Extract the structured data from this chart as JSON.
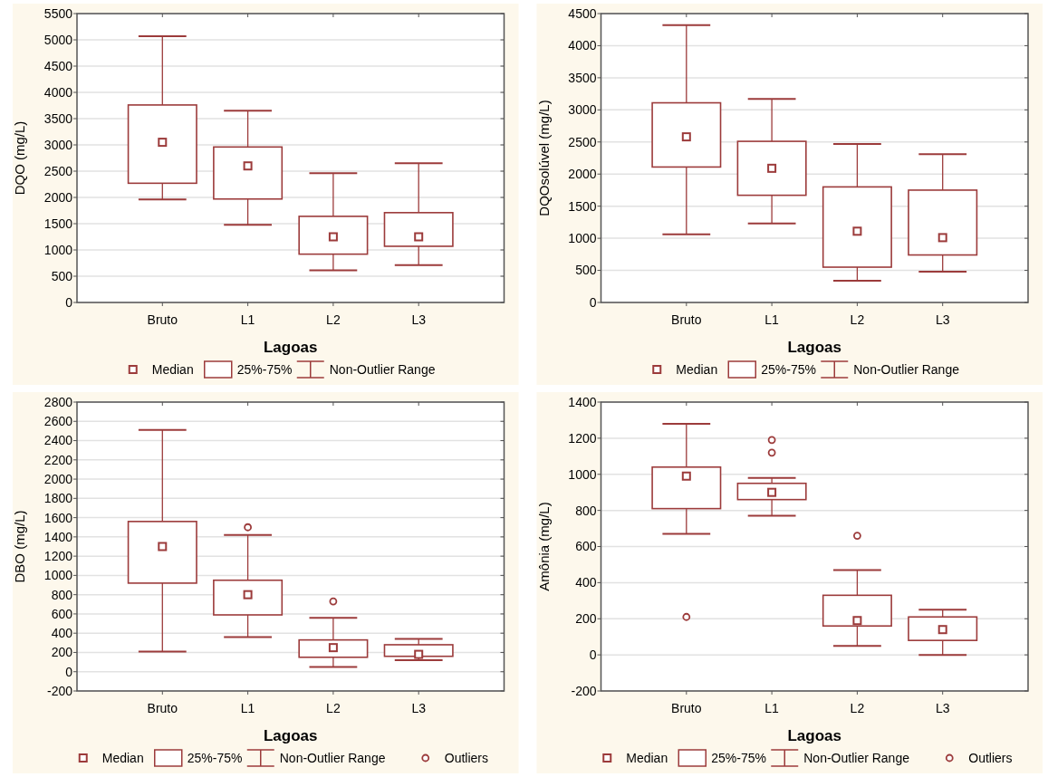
{
  "chart_data": [
    {
      "type": "box",
      "xlabel": "Lagoas",
      "ylabel": "DQO (mg/L)",
      "categories": [
        "Bruto",
        "L1",
        "L2",
        "L3"
      ],
      "color": "#9c3b3b",
      "marker": "square",
      "grid": "y",
      "ylim": [
        0,
        5500
      ],
      "yticks": [
        0,
        500,
        1000,
        1500,
        2000,
        2500,
        3000,
        3500,
        4000,
        4500,
        5000,
        5500
      ],
      "boxes": [
        {
          "low": 1960,
          "q1": 2270,
          "median": 3050,
          "q3": 3760,
          "high": 5070
        },
        {
          "low": 1480,
          "q1": 1970,
          "median": 2600,
          "q3": 2960,
          "high": 3650
        },
        {
          "low": 610,
          "q1": 920,
          "median": 1250,
          "q3": 1640,
          "high": 2460
        },
        {
          "low": 710,
          "q1": 1070,
          "median": 1250,
          "q3": 1710,
          "high": 2650
        }
      ],
      "annotations": [
        "Median",
        "25%-75%",
        "Non-Outlier Range"
      ]
    },
    {
      "type": "box",
      "xlabel": "Lagoas",
      "ylabel": "DQOsolúvel (mg/L)",
      "categories": [
        "Bruto",
        "L1",
        "L2",
        "L3"
      ],
      "color": "#9c3b3b",
      "marker": "square",
      "grid": "y",
      "ylim": [
        0,
        4500
      ],
      "yticks": [
        0,
        500,
        1000,
        1500,
        2000,
        2500,
        3000,
        3500,
        4000,
        4500
      ],
      "boxes": [
        {
          "low": 1060,
          "q1": 2110,
          "median": 2580,
          "q3": 3110,
          "high": 4320
        },
        {
          "low": 1230,
          "q1": 1670,
          "median": 2090,
          "q3": 2510,
          "high": 3170
        },
        {
          "low": 340,
          "q1": 550,
          "median": 1110,
          "q3": 1800,
          "high": 2470
        },
        {
          "low": 480,
          "q1": 740,
          "median": 1010,
          "q3": 1750,
          "high": 2310
        }
      ],
      "annotations": [
        "Median",
        "25%-75%",
        "Non-Outlier Range"
      ]
    },
    {
      "type": "box",
      "xlabel": "Lagoas",
      "ylabel": "DBO (mg/L)",
      "categories": [
        "Bruto",
        "L1",
        "L2",
        "L3"
      ],
      "color": "#9c3b3b",
      "marker": "square",
      "grid": "y",
      "ylim": [
        -200,
        2800
      ],
      "yticks": [
        -200,
        0,
        200,
        400,
        600,
        800,
        1000,
        1200,
        1400,
        1600,
        1800,
        2000,
        2200,
        2400,
        2600,
        2800
      ],
      "boxes": [
        {
          "low": 210,
          "q1": 920,
          "median": 1300,
          "q3": 1560,
          "high": 2510
        },
        {
          "low": 360,
          "q1": 590,
          "median": 800,
          "q3": 950,
          "high": 1420,
          "outliers": [
            1500
          ]
        },
        {
          "low": 50,
          "q1": 150,
          "median": 250,
          "q3": 330,
          "high": 560,
          "outliers": [
            730
          ]
        },
        {
          "low": 120,
          "q1": 160,
          "median": 180,
          "q3": 280,
          "high": 340
        }
      ],
      "annotations": [
        "Median",
        "25%-75%",
        "Non-Outlier Range",
        "Outliers"
      ]
    },
    {
      "type": "box",
      "xlabel": "Lagoas",
      "ylabel": "Amônia (mg/L)",
      "categories": [
        "Bruto",
        "L1",
        "L2",
        "L3"
      ],
      "color": "#9c3b3b",
      "marker": "square",
      "grid": "y",
      "ylim": [
        -200,
        1400
      ],
      "yticks": [
        -200,
        0,
        200,
        400,
        600,
        800,
        1000,
        1200,
        1400
      ],
      "boxes": [
        {
          "low": 670,
          "q1": 810,
          "median": 990,
          "q3": 1040,
          "high": 1280,
          "outliers": [
            210
          ]
        },
        {
          "low": 770,
          "q1": 860,
          "median": 900,
          "q3": 950,
          "high": 980,
          "outliers": [
            1120,
            1190
          ]
        },
        {
          "low": 50,
          "q1": 160,
          "median": 190,
          "q3": 330,
          "high": 470,
          "outliers": [
            660
          ]
        },
        {
          "low": 0,
          "q1": 80,
          "median": 140,
          "q3": 210,
          "high": 250
        }
      ],
      "annotations": [
        "Median",
        "25%-75%",
        "Non-Outlier Range",
        "Outliers"
      ]
    }
  ]
}
